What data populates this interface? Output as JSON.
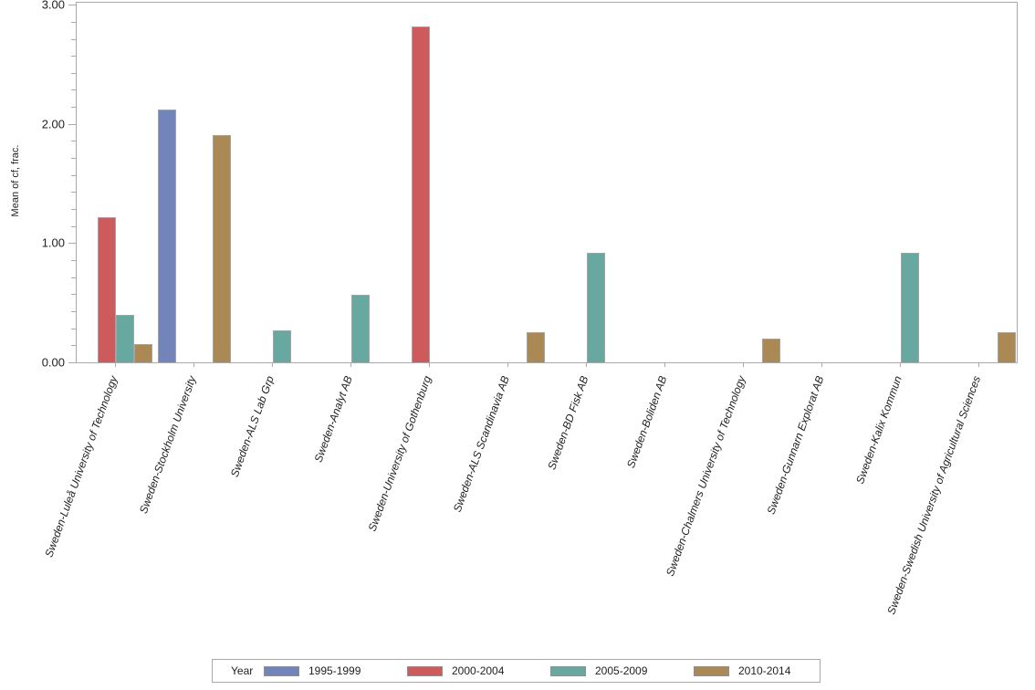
{
  "figure": {
    "background": "#ffffff",
    "axis_color": "#a9a9a9",
    "text_color": "#1f1f1f"
  },
  "y_axis": {
    "title": "Mean of cf, frac.",
    "tick_values": [
      0,
      1,
      2,
      3
    ],
    "tick_labels": [
      "0.00",
      "1.00",
      "2.00",
      "3.00"
    ],
    "minor_ticks_between_majors": 6
  },
  "legend": {
    "title": "Year",
    "position": "bottom"
  },
  "chart_data": {
    "type": "bar",
    "title": "",
    "xlabel": "",
    "ylabel": "Mean of cf, frac.",
    "ylim": [
      0,
      3
    ],
    "grid": false,
    "legend_position": "bottom",
    "categories": [
      "Sweden-Luleå University of Technology",
      "Sweden-Stockholm University",
      "Sweden-ALS Lab Grp",
      "Sweden-Analyt AB",
      "Sweden-University of Gothenburg",
      "Sweden-ALS Scandinavia AB",
      "Sweden-BD Fisk AB",
      "Sweden-Boliden AB",
      "Sweden-Chalmers University of Technology",
      "Sweden-Gunnarn Explorat AB",
      "Sweden-Kalix Kommun",
      "Sweden-Swedish University of Agricultural Sciences"
    ],
    "series": [
      {
        "name": "1995-1999",
        "color": "#7384bb",
        "values": [
          null,
          2.12,
          null,
          null,
          null,
          null,
          null,
          null,
          null,
          null,
          null,
          null
        ]
      },
      {
        "name": "2000-2004",
        "color": "#cd5b5c",
        "values": [
          1.22,
          null,
          null,
          null,
          2.82,
          null,
          null,
          null,
          null,
          null,
          null,
          null
        ]
      },
      {
        "name": "2005-2009",
        "color": "#67a8a1",
        "values": [
          0.4,
          null,
          0.27,
          0.57,
          null,
          null,
          0.92,
          null,
          null,
          null,
          0.92,
          null
        ]
      },
      {
        "name": "2010-2014",
        "color": "#ab8955",
        "values": [
          0.15,
          1.91,
          null,
          null,
          null,
          0.25,
          null,
          null,
          0.2,
          null,
          null,
          0.25
        ]
      }
    ]
  }
}
